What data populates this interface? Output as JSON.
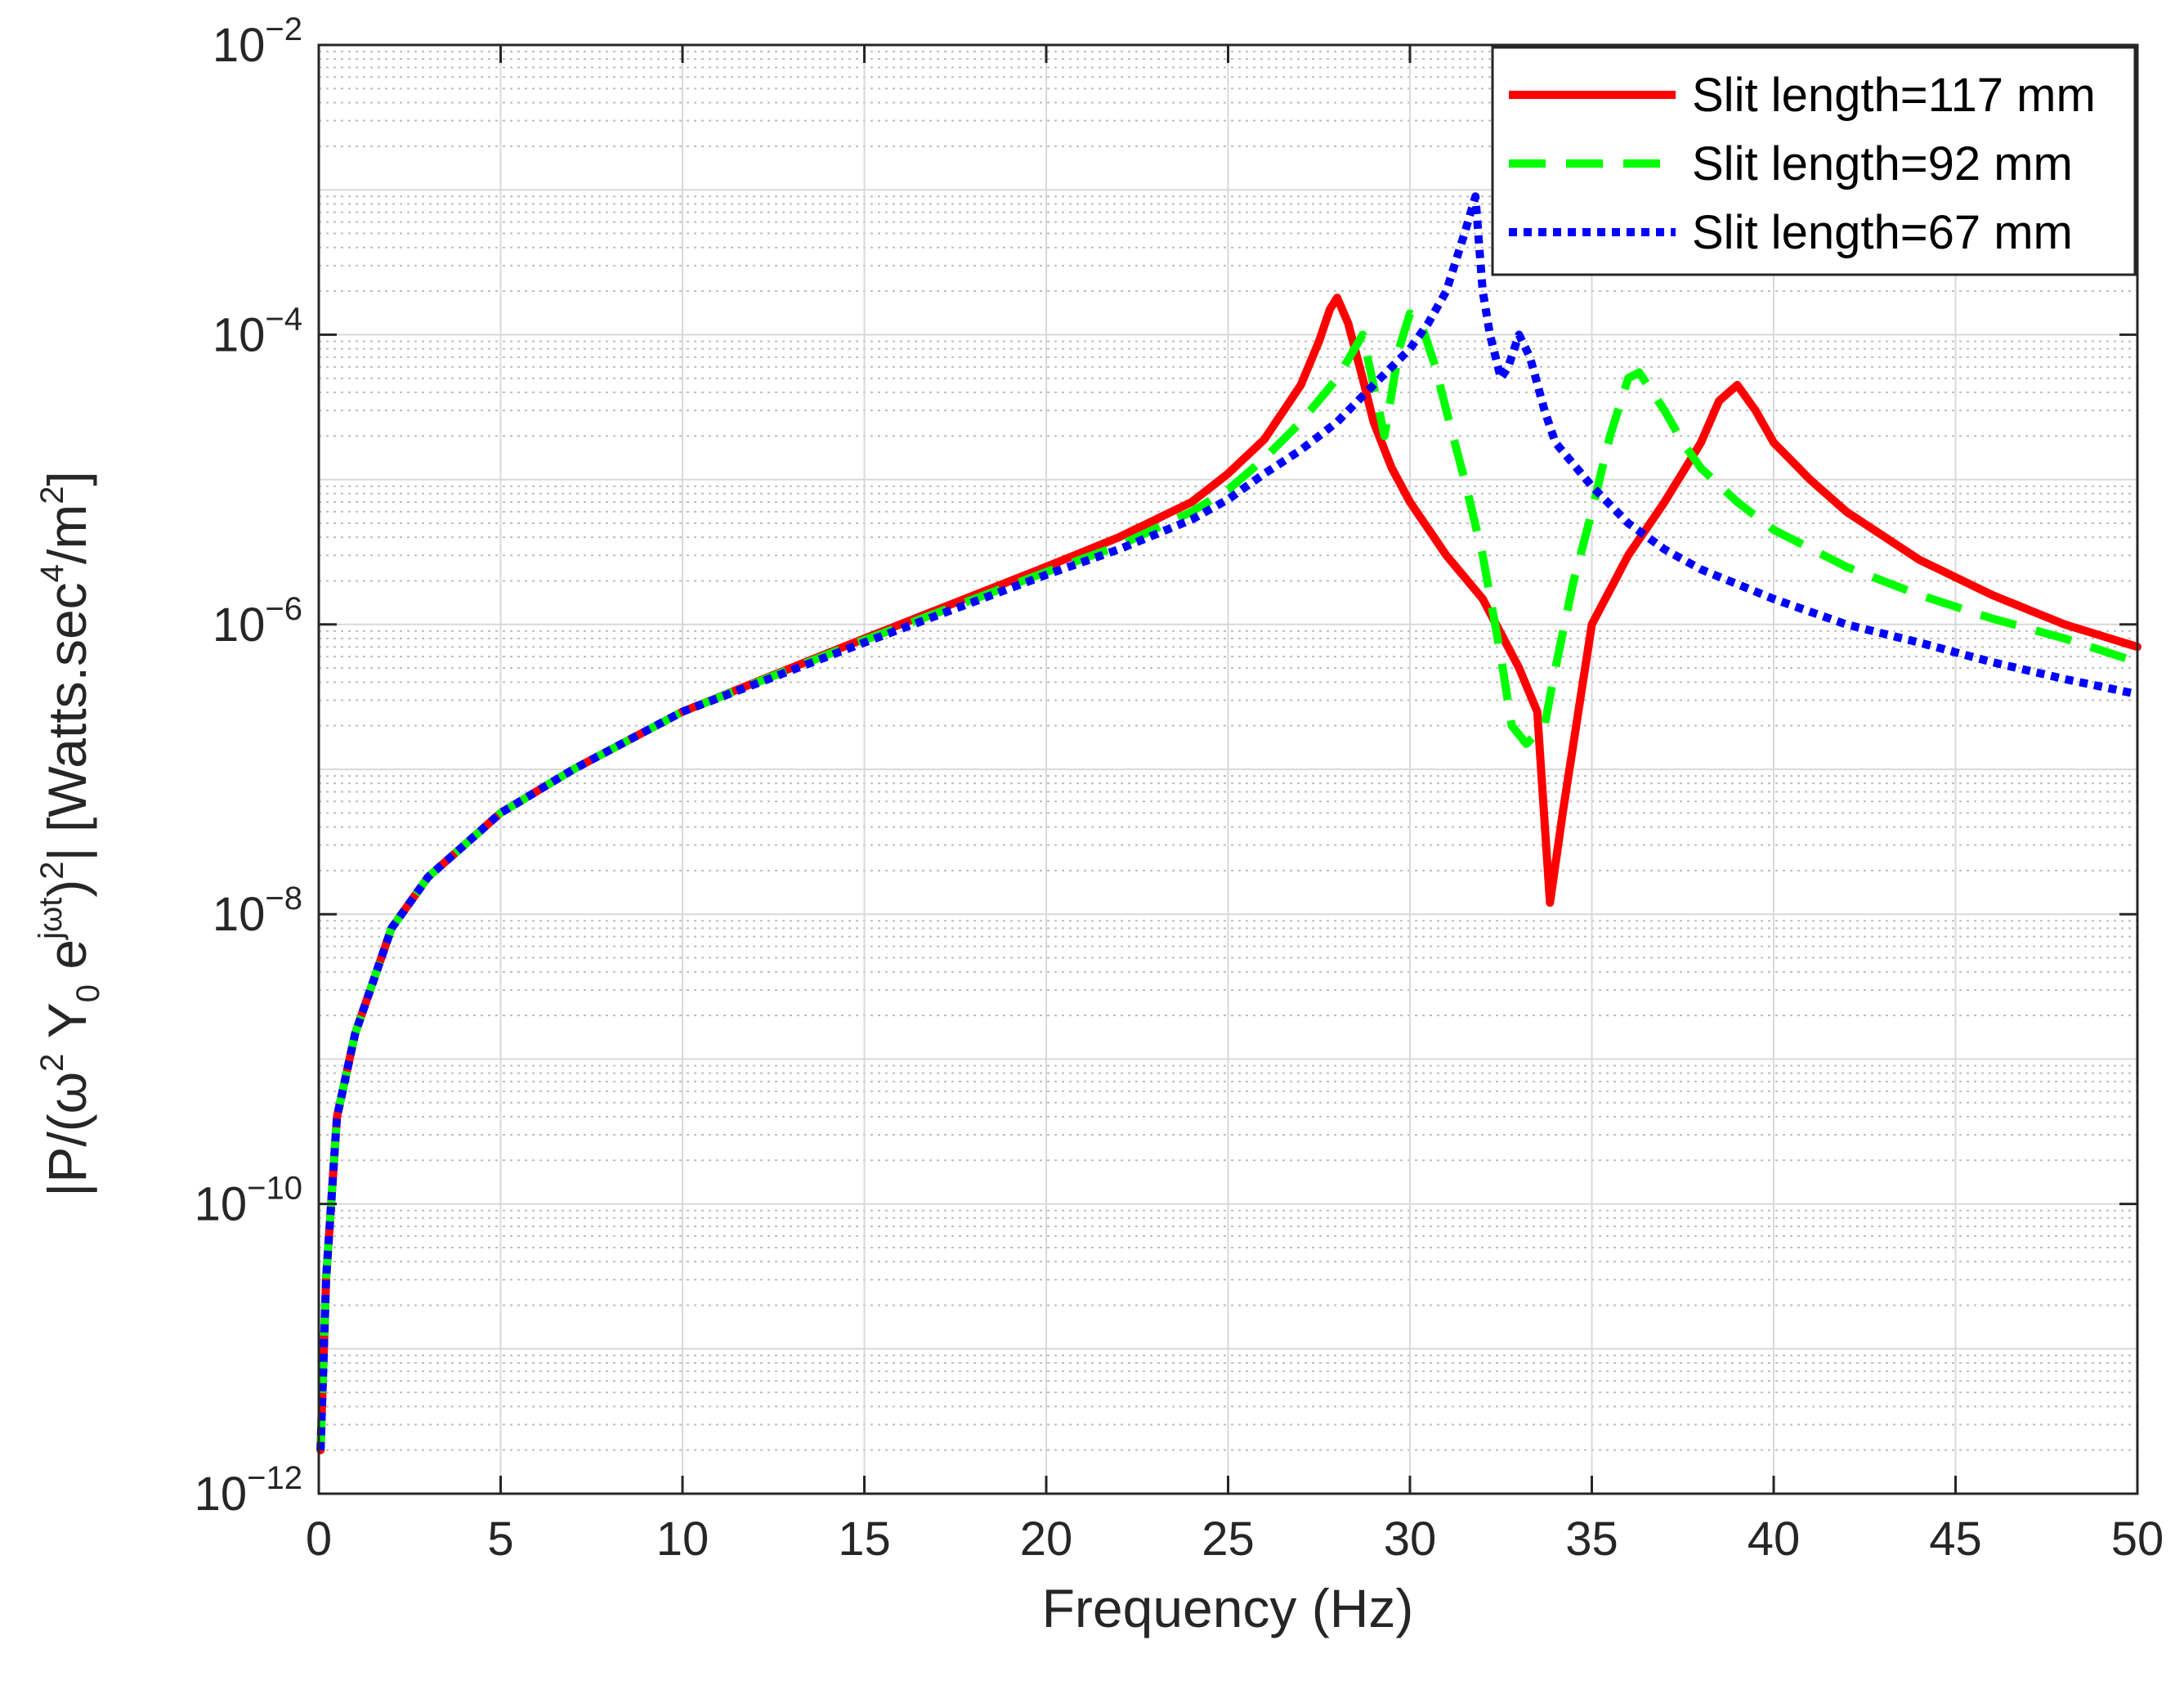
{
  "chart_data": {
    "type": "line",
    "title": "",
    "xlabel": "Frequency (Hz)",
    "ylabel": {
      "parts": [
        "|P/(ω",
        "2",
        " Y",
        "0",
        " e",
        "jωt",
        ")",
        "2",
        "| [Watts.sec",
        "4",
        "/m",
        "2",
        "]"
      ]
    },
    "xlim": [
      0,
      50
    ],
    "ylim": [
      1e-12,
      0.01
    ],
    "yscale": "log",
    "grid": true,
    "legend_position": "top-right",
    "x_ticks": [
      "0",
      "5",
      "10",
      "15",
      "20",
      "25",
      "30",
      "35",
      "40",
      "45",
      "50"
    ],
    "y_ticks": [
      {
        "base": "10",
        "exponent": "−12",
        "value": 1e-12
      },
      {
        "base": "10",
        "exponent": "−10",
        "value": 1e-10
      },
      {
        "base": "10",
        "exponent": "−8",
        "value": 1e-08
      },
      {
        "base": "10",
        "exponent": "−6",
        "value": 1e-06
      },
      {
        "base": "10",
        "exponent": "−4",
        "value": 0.0001
      },
      {
        "base": "10",
        "exponent": "−2",
        "value": 0.01
      }
    ],
    "series": [
      {
        "name": "Slit length=117 mm",
        "color": "#ff0000",
        "style": "solid",
        "x": [
          0.05,
          0.2,
          0.5,
          1,
          2,
          3,
          5,
          7,
          10,
          15,
          20,
          22,
          24,
          25,
          26,
          27,
          27.5,
          27.8,
          28,
          28.3,
          28.7,
          29,
          29.5,
          30,
          31,
          32,
          33,
          33.5,
          33.85,
          34.2,
          35,
          36,
          37,
          38,
          38.5,
          39,
          39.5,
          40,
          41,
          42,
          44,
          46,
          48,
          50
        ],
        "y": [
          2e-12,
          3e-11,
          4e-10,
          1.5e-09,
          8e-09,
          1.8e-08,
          5e-08,
          1e-07,
          2.5e-07,
          8e-07,
          2.5e-06,
          4e-06,
          7e-06,
          1.1e-05,
          1.9e-05,
          4.5e-05,
          9e-05,
          0.00015,
          0.00018,
          0.00012,
          5e-05,
          2.5e-05,
          1.2e-05,
          7e-06,
          3e-06,
          1.5e-06,
          5e-07,
          2.5e-07,
          1.2e-08,
          5e-08,
          1e-06,
          3e-06,
          7e-06,
          1.8e-05,
          3.5e-05,
          4.5e-05,
          3e-05,
          1.8e-05,
          1e-05,
          6e-06,
          2.8e-06,
          1.6e-06,
          1e-06,
          7e-07
        ]
      },
      {
        "name": "Slit length=92 mm",
        "color": "#00ff00",
        "style": "dashed",
        "x": [
          0.05,
          0.2,
          0.5,
          1,
          2,
          3,
          5,
          7,
          10,
          15,
          20,
          22,
          24,
          25,
          26,
          27,
          28,
          28.7,
          29.3,
          29.7,
          30,
          30.3,
          30.7,
          31,
          31.5,
          32,
          32.5,
          32.8,
          33.2,
          33.7,
          34,
          34.5,
          35,
          35.5,
          36,
          36.3,
          37,
          37.5,
          38,
          39,
          40,
          42,
          44,
          46,
          48,
          50
        ],
        "y": [
          2e-12,
          3e-11,
          4e-10,
          1.5e-09,
          8e-09,
          1.8e-08,
          5e-08,
          1e-07,
          2.5e-07,
          7.8e-07,
          2.3e-06,
          3.5e-06,
          6e-06,
          8.5e-06,
          1.4e-05,
          2.5e-05,
          5e-05,
          0.0001,
          2e-05,
          8e-05,
          0.00014,
          0.00012,
          6e-05,
          3e-05,
          1e-05,
          3e-06,
          6e-07,
          2e-07,
          1.5e-07,
          2e-07,
          5e-07,
          2e-06,
          6e-06,
          2e-05,
          5e-05,
          5.5e-05,
          3e-05,
          1.8e-05,
          1.2e-05,
          7e-06,
          4.5e-06,
          2.5e-06,
          1.6e-06,
          1.1e-06,
          8e-07,
          5.5e-07
        ]
      },
      {
        "name": "Slit length=67 mm",
        "color": "#0000ff",
        "style": "dotted",
        "x": [
          0.05,
          0.2,
          0.5,
          1,
          2,
          3,
          5,
          7,
          10,
          15,
          20,
          22,
          24,
          25,
          26,
          27,
          28,
          29,
          30,
          30.5,
          31,
          31.5,
          31.8,
          32,
          32.2,
          32.5,
          32.7,
          33,
          33.3,
          33.7,
          34,
          35,
          36,
          37,
          38,
          40,
          42,
          44,
          46,
          48,
          50
        ],
        "y": [
          2e-12,
          3e-11,
          4e-10,
          1.5e-09,
          8e-09,
          1.8e-08,
          5e-08,
          1e-07,
          2.5e-07,
          7.5e-07,
          2.2e-06,
          3.3e-06,
          5.3e-06,
          7.3e-06,
          1.1e-05,
          1.6e-05,
          2.5e-05,
          4.5e-05,
          8e-05,
          0.00012,
          0.0002,
          0.0005,
          0.0009,
          0.0002,
          0.0001,
          5e-05,
          6e-05,
          0.0001,
          7e-05,
          3e-05,
          1.8e-05,
          9e-06,
          5e-06,
          3.3e-06,
          2.4e-06,
          1.5e-06,
          1e-06,
          7.5e-07,
          5.5e-07,
          4.2e-07,
          3.3e-07
        ]
      }
    ]
  }
}
